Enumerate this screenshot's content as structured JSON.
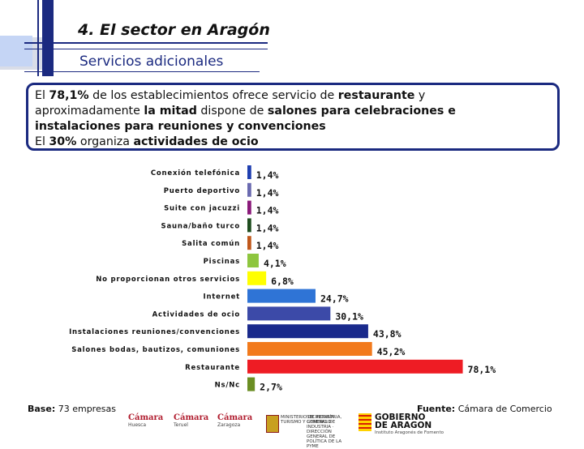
{
  "header": {
    "title": "4. El sector en Aragón",
    "subtitle": "Servicios adicionales"
  },
  "summary": {
    "line1": [
      {
        "t": "El ",
        "b": false
      },
      {
        "t": "78,1%",
        "b": true
      },
      {
        "t": " de los establecimientos ofrece servicio de ",
        "b": false
      },
      {
        "t": "restaurante",
        "b": true
      },
      {
        "t": " y",
        "b": false
      }
    ],
    "line2": [
      {
        "t": "aproximadamente ",
        "b": false
      },
      {
        "t": "la mitad",
        "b": true
      },
      {
        "t": " dispone de ",
        "b": false
      },
      {
        "t": "salones para celebraciones e",
        "b": true
      }
    ],
    "line3": [
      {
        "t": "instalaciones para reuniones y convenciones",
        "b": true
      }
    ],
    "line4": [
      {
        "t": "El ",
        "b": false
      },
      {
        "t": "30%",
        "b": true
      },
      {
        "t": " organiza ",
        "b": false
      },
      {
        "t": "actividades de ocio",
        "b": true
      }
    ]
  },
  "chart_data": {
    "type": "bar",
    "orientation": "horizontal",
    "title": "",
    "xlabel": "",
    "ylabel": "",
    "xlim": [
      0,
      100
    ],
    "categories": [
      "Conexión telefónica",
      "Puerto deportivo",
      "Suite con jacuzzi",
      "Sauna/baño turco",
      "Salita común",
      "Piscinas",
      "No proporcionan otros servicios",
      "Internet",
      "Actividades de ocio",
      "Instalaciones reuniones/convenciones",
      "Salones bodas, bautizos, comuniones",
      "Restaurante",
      "Ns/Nc"
    ],
    "values": [
      1.4,
      1.4,
      1.4,
      1.4,
      1.4,
      4.1,
      6.8,
      24.7,
      30.1,
      43.8,
      45.2,
      78.1,
      2.7
    ],
    "labels": [
      "1,4%",
      "1,4%",
      "1,4%",
      "1,4%",
      "1,4%",
      "4,1%",
      "6,8%",
      "24,7%",
      "30,1%",
      "43,8%",
      "45,2%",
      "78,1%",
      "2,7%"
    ],
    "colors": [
      "#1f3fb0",
      "#6a6ab0",
      "#8a1a7a",
      "#1f4d1f",
      "#c0581c",
      "#8ec63f",
      "#ffff00",
      "#2f74d6",
      "#3c4aa8",
      "#1a2a8c",
      "#f27a1c",
      "#ee1c24",
      "#6b8e23"
    ]
  },
  "footer": {
    "base_label": "Base:",
    "base_value": " 73 empresas",
    "source_label": "Fuente:",
    "source_value": " Cámara de Comercio"
  },
  "logos": {
    "camara1": "Cámara",
    "camara1_city": "Huesca",
    "camara2": "Cámara",
    "camara2_city": "Teruel",
    "camara3": "Cámara",
    "camara3_city": "Zaragoza",
    "ministerio": "MINISTERIO DE INDUSTRIA, TURISMO Y COMERCIO",
    "secretaria": "SECRETARÍA GENERAL DE INDUSTRIA · DIRECCIÓN GENERAL DE POLÍTICA DE LA PYME",
    "gobierno_1": "GOBIERNO",
    "gobierno_2": "DE ARAGON",
    "gobierno_sub": "Instituto Aragonés de Fomento"
  }
}
